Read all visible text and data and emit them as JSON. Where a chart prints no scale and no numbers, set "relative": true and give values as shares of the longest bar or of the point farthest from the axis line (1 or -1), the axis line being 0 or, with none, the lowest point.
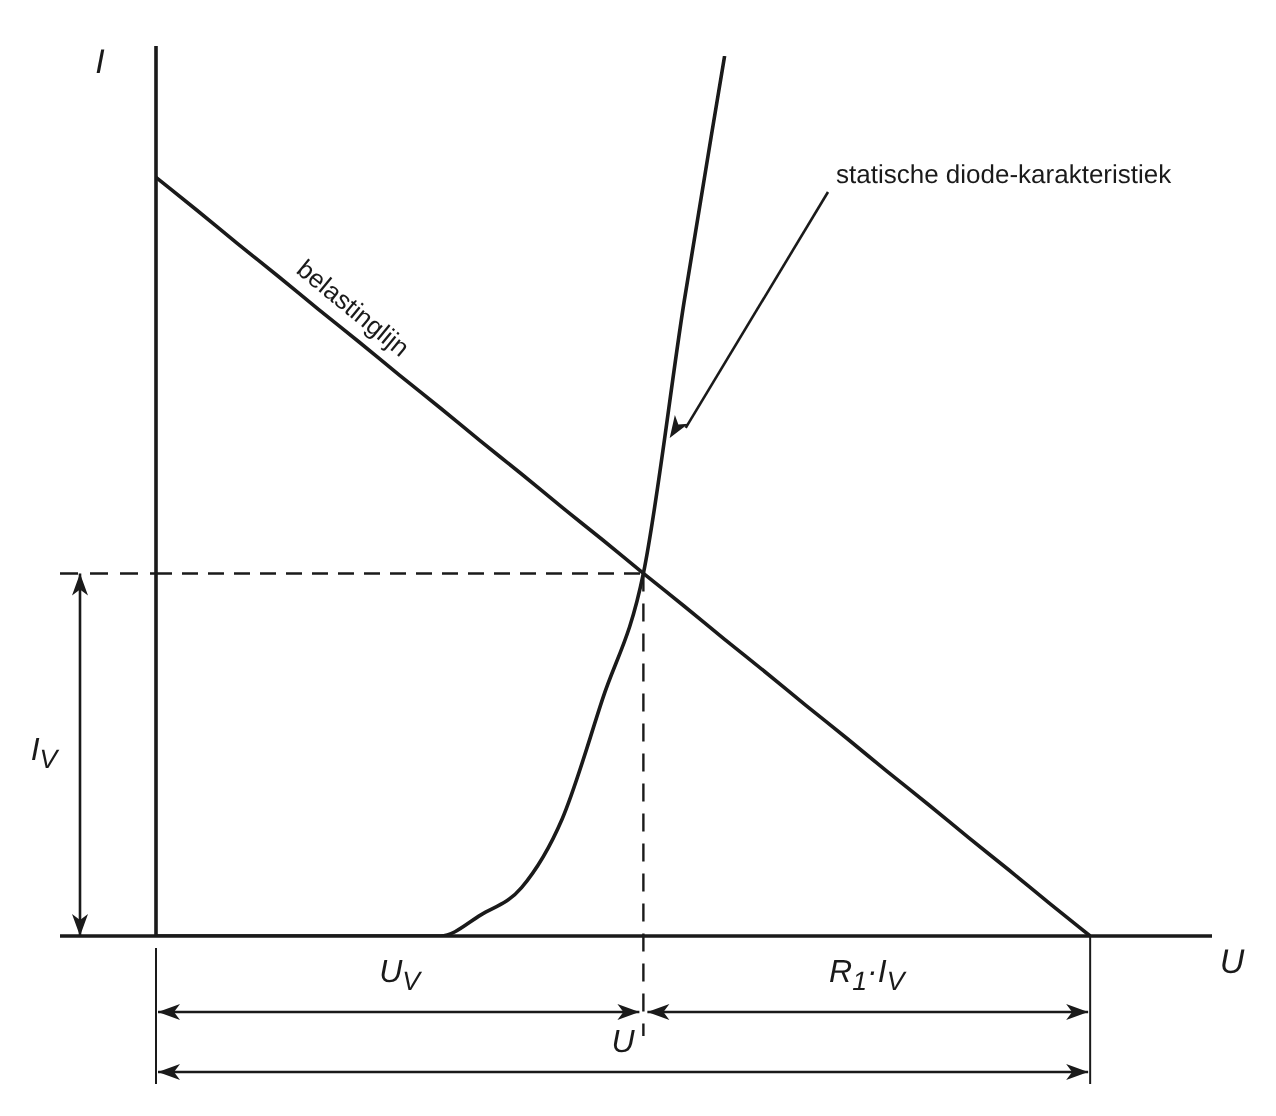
{
  "chart_data": {
    "type": "line",
    "xlabel": "U",
    "ylabel": "I",
    "relative": true,
    "legend": false,
    "marker": "none",
    "line_style": "solid",
    "categories": [
      null,
      null,
      null,
      null,
      null,
      null,
      null,
      null,
      null,
      null,
      null,
      null,
      null,
      null,
      null,
      null,
      null,
      null,
      null,
      null,
      null,
      null,
      null,
      null,
      null,
      null,
      null
    ],
    "series": [
      {
        "name": "belastinglijn",
        "color": "#1a1a1a",
        "values": [
          0.862,
          0.825,
          0.787,
          0.75,
          0.712,
          0.675,
          0.637,
          0.6,
          0.562,
          0.525,
          0.487,
          0.45,
          0.412,
          0.375,
          0.337,
          0.3,
          0.262,
          0.225,
          0.187,
          0.15,
          0.112,
          0.075,
          0.037,
          0,
          null,
          null,
          null
        ]
      },
      {
        "name": "statische diode-karakteristiek",
        "color": "#1a1a1a",
        "values": [
          0,
          0,
          0,
          0,
          0,
          0,
          0,
          0,
          0.024,
          0.055,
          0.133,
          0.27,
          0.412,
          0.72,
          1,
          null,
          null,
          null,
          null,
          null,
          null,
          null,
          null,
          null,
          null,
          null,
          null
        ]
      },
      {
        "color": "#1a1a1a",
        "line_style": "dashed",
        "values": [
          0.412,
          0.412,
          0.412,
          0.412,
          0.412,
          0.412,
          0.412,
          0.412,
          0.412,
          0.412,
          0.412,
          0.412,
          0.412,
          null,
          null,
          null,
          null,
          null,
          null,
          null,
          null,
          null,
          null,
          null,
          null,
          null,
          null
        ]
      }
    ],
    "annotations": [
      "I$_{V}$",
      "U$_{V}$",
      "R$_{1}$·I$_{V}$",
      "U"
    ]
  }
}
